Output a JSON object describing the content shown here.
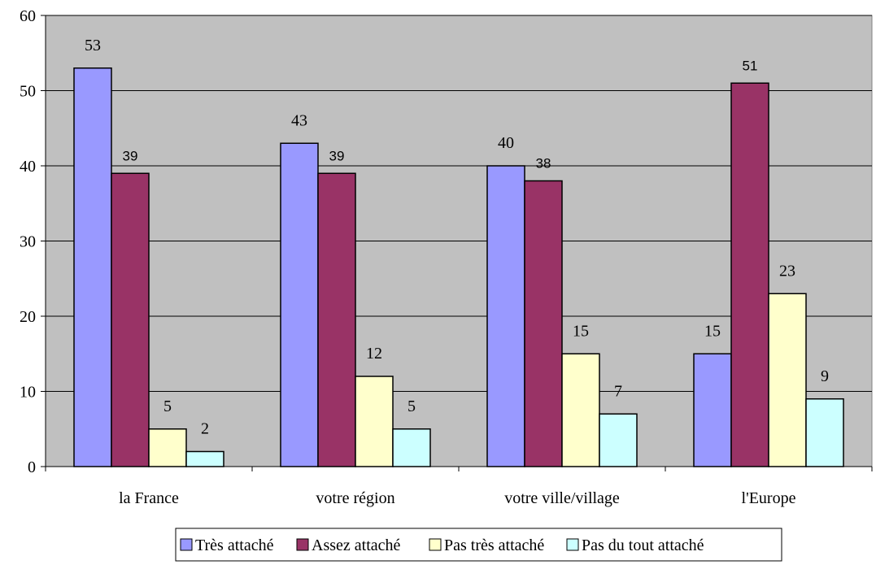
{
  "chart_data": {
    "type": "bar",
    "title": "",
    "xlabel": "",
    "ylabel": "",
    "ylim": [
      0,
      60
    ],
    "yticks": [
      0,
      10,
      20,
      30,
      40,
      50,
      60
    ],
    "grid": true,
    "legend_position": "bottom",
    "plot_background": "#c0c0c0",
    "categories": [
      "la France",
      "votre région",
      "votre ville/village",
      "l'Europe"
    ],
    "series": [
      {
        "name": "Très attaché",
        "color": "#9999ff",
        "values": [
          53,
          43,
          40,
          15
        ]
      },
      {
        "name": "Assez attaché",
        "color": "#993366",
        "values": [
          39,
          39,
          38,
          51
        ]
      },
      {
        "name": "Pas très attaché",
        "color": "#ffffcc",
        "values": [
          5,
          12,
          15,
          23
        ]
      },
      {
        "name": "Pas du tout attaché",
        "color": "#ccffff",
        "values": [
          2,
          5,
          7,
          9
        ]
      }
    ]
  }
}
